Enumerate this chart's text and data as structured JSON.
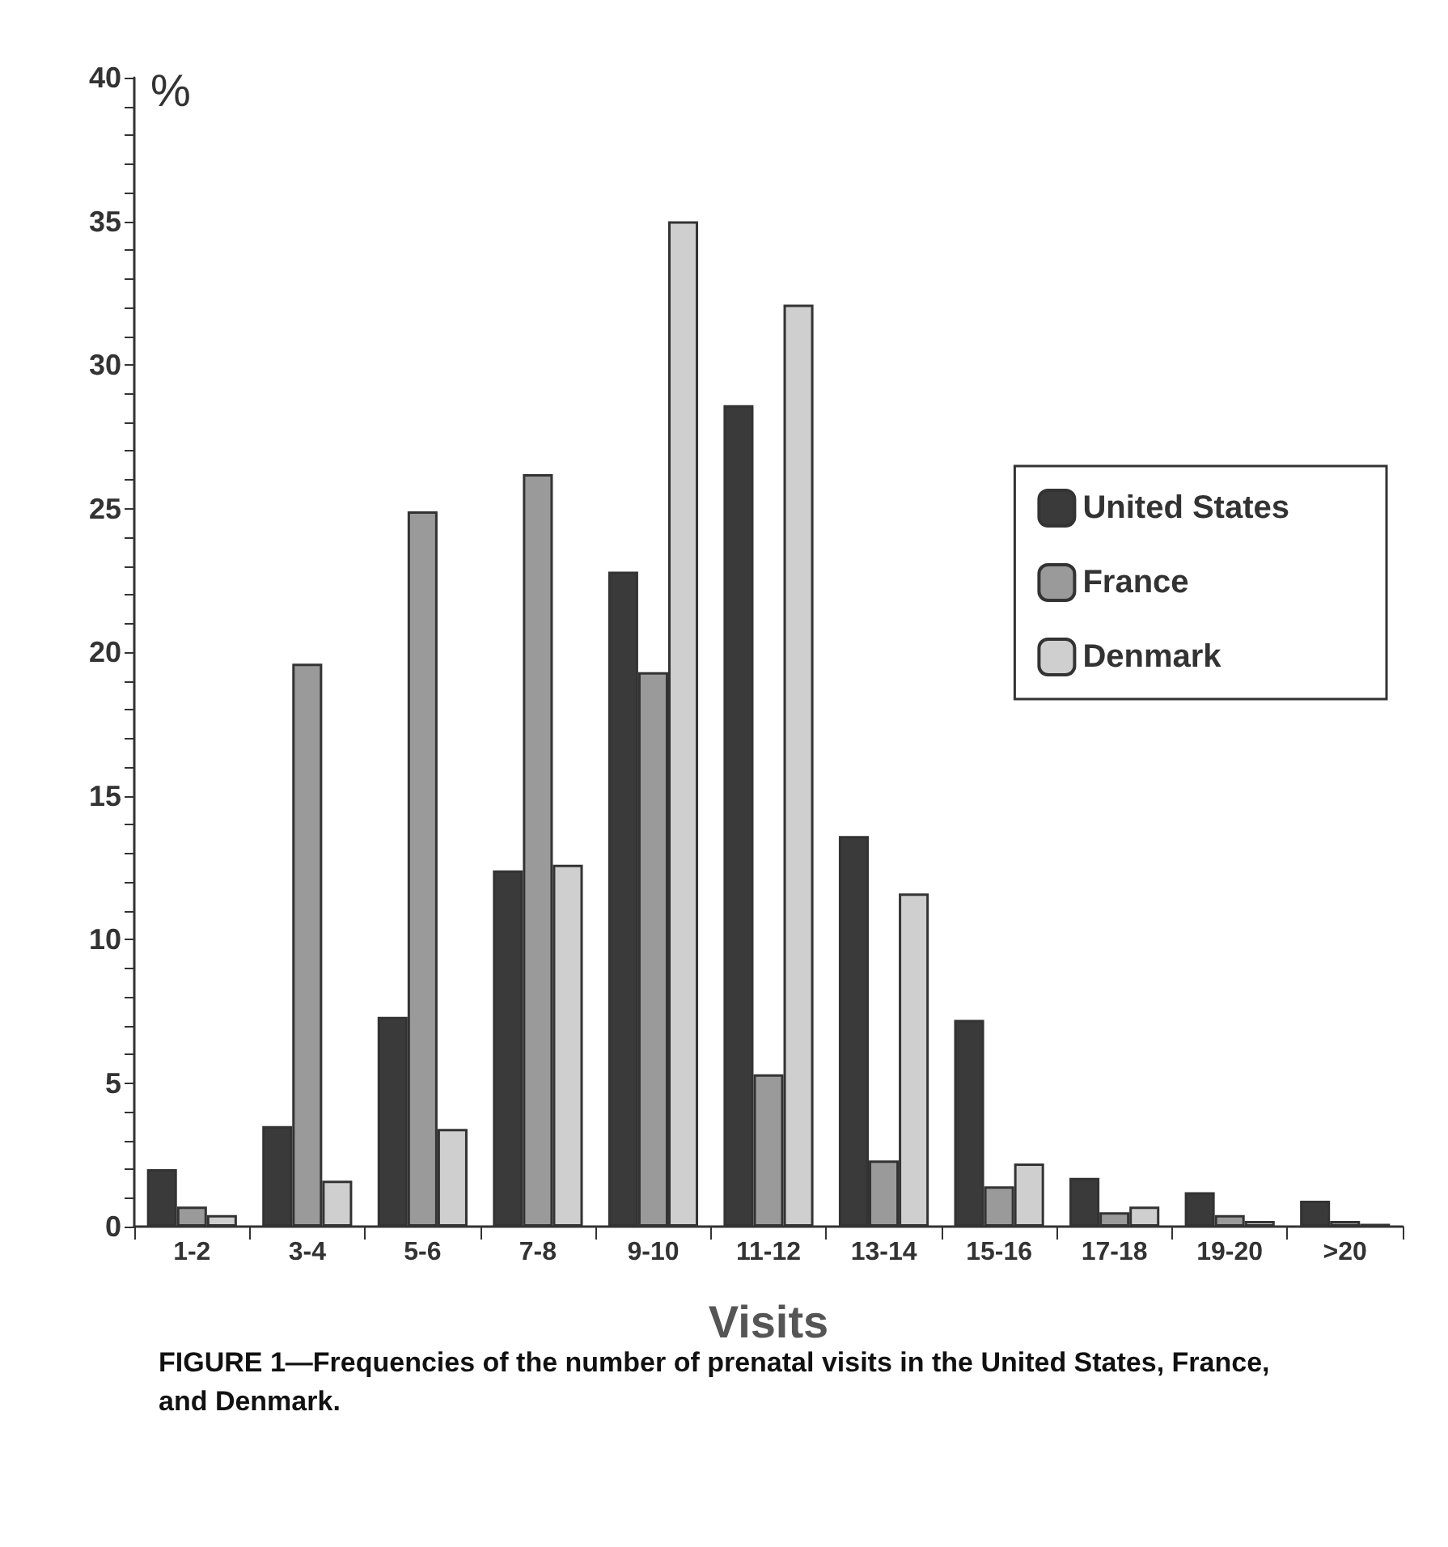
{
  "chart_data": {
    "type": "bar",
    "xlabel": "Visits",
    "ylabel": "%",
    "categories": [
      "1-2",
      "3-4",
      "5-6",
      "7-8",
      "9-10",
      "11-12",
      "13-14",
      "15-16",
      "17-18",
      "19-20",
      ">20"
    ],
    "series": [
      {
        "name": "United States",
        "color": "#3a3a3a",
        "values": [
          2.0,
          3.5,
          7.3,
          12.4,
          22.8,
          28.6,
          13.6,
          7.2,
          1.7,
          1.2,
          0.9
        ]
      },
      {
        "name": "France",
        "color": "#9a9a9a",
        "values": [
          0.7,
          19.6,
          24.9,
          26.2,
          19.3,
          5.3,
          2.3,
          1.4,
          0.5,
          0.4,
          0.2
        ]
      },
      {
        "name": "Denmark",
        "color": "#cfcfcf",
        "values": [
          0.4,
          1.6,
          3.4,
          12.6,
          35.0,
          32.1,
          11.6,
          2.2,
          0.7,
          0.2,
          0.1
        ]
      }
    ],
    "ylim": [
      0,
      40
    ],
    "yticks": [
      0,
      {
        "value": 1,
        "label": null
      },
      {
        "value": 2,
        "label": null
      },
      {
        "value": 3,
        "label": null
      },
      {
        "value": 4,
        "label": null
      },
      5,
      {
        "value": 6,
        "label": null
      },
      {
        "value": 7,
        "label": null
      },
      {
        "value": 8,
        "label": null
      },
      {
        "value": 9,
        "label": null
      },
      10,
      {
        "value": 11,
        "label": null
      },
      {
        "value": 12,
        "label": null
      },
      {
        "value": 13,
        "label": null
      },
      {
        "value": 14,
        "label": null
      },
      15,
      {
        "value": 16,
        "label": null
      },
      {
        "value": 17,
        "label": null
      },
      {
        "value": 18,
        "label": null
      },
      {
        "value": 19,
        "label": null
      },
      20,
      {
        "value": 21,
        "label": null
      },
      {
        "value": 22,
        "label": null
      },
      {
        "value": 23,
        "label": null
      },
      {
        "value": 24,
        "label": null
      },
      25,
      {
        "value": 26,
        "label": null
      },
      {
        "value": 27,
        "label": null
      },
      {
        "value": 28,
        "label": null
      },
      {
        "value": 29,
        "label": null
      },
      30,
      {
        "value": 31,
        "label": null
      },
      {
        "value": 32,
        "label": null
      },
      {
        "value": 33,
        "label": null
      },
      {
        "value": 34,
        "label": null
      },
      35,
      {
        "value": 36,
        "label": null
      },
      {
        "value": 37,
        "label": null
      },
      {
        "value": 38,
        "label": null
      },
      {
        "value": 39,
        "label": null
      },
      40
    ],
    "grid": false,
    "legend": "top right",
    "annotations": [
      "FIGURE 1—Frequencies of the number of prenatal visits in the United States, France, and Denmark."
    ]
  }
}
